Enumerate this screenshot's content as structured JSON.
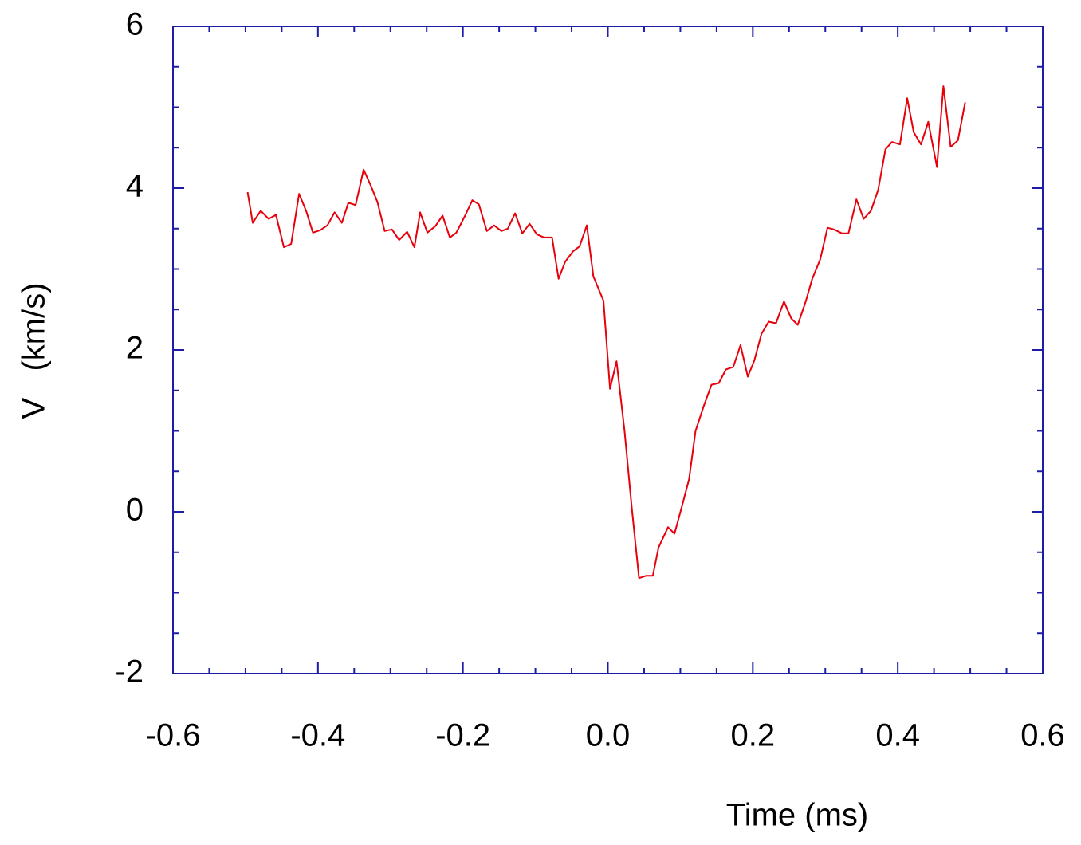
{
  "chart_data": {
    "type": "line",
    "xlabel": "Time (ms)",
    "ylabel": "V   (km/s)",
    "xlim": [
      -0.6,
      0.6
    ],
    "xticks": [
      -0.6,
      -0.4,
      -0.2,
      {
        "value": 0,
        "label": "0.0"
      },
      0.2,
      0.4,
      0.6
    ],
    "ylim": [
      -2,
      6
    ],
    "yticks": [
      -2,
      0,
      2,
      4,
      6
    ],
    "axis_color": "#1c1ca8",
    "series": [
      {
        "color": "#e8000b",
        "x": [
          -0.497,
          -0.49,
          -0.479,
          -0.468,
          -0.458,
          -0.447,
          -0.437,
          -0.426,
          -0.416,
          -0.407,
          -0.397,
          -0.387,
          -0.377,
          -0.367,
          -0.358,
          -0.348,
          -0.337,
          -0.327,
          -0.318,
          -0.308,
          -0.298,
          -0.288,
          -0.277,
          -0.267,
          -0.259,
          -0.249,
          -0.238,
          -0.228,
          -0.218,
          -0.209,
          -0.197,
          -0.187,
          -0.178,
          -0.167,
          -0.157,
          -0.147,
          -0.138,
          -0.128,
          -0.118,
          -0.108,
          -0.098,
          -0.088,
          -0.077,
          -0.068,
          -0.059,
          -0.048,
          -0.039,
          -0.029,
          -0.02,
          -0.006,
          0.003,
          0.012,
          0.023,
          0.033,
          0.043,
          0.053,
          0.062,
          0.07,
          0.083,
          0.092,
          0.102,
          0.112,
          0.121,
          0.132,
          0.143,
          0.153,
          0.163,
          0.173,
          0.183,
          0.193,
          0.202,
          0.212,
          0.222,
          0.232,
          0.243,
          0.253,
          0.262,
          0.273,
          0.282,
          0.293,
          0.303,
          0.312,
          0.323,
          0.332,
          0.343,
          0.353,
          0.363,
          0.373,
          0.383,
          0.392,
          0.403,
          0.413,
          0.422,
          0.432,
          0.442,
          0.454,
          0.463,
          0.473,
          0.483,
          0.493
        ],
        "values": [
          3.95,
          3.57,
          3.72,
          3.62,
          3.67,
          3.27,
          3.31,
          3.93,
          3.71,
          3.45,
          3.48,
          3.54,
          3.7,
          3.57,
          3.82,
          3.79,
          4.23,
          4.03,
          3.83,
          3.47,
          3.49,
          3.36,
          3.46,
          3.27,
          3.7,
          3.45,
          3.53,
          3.66,
          3.39,
          3.45,
          3.66,
          3.85,
          3.8,
          3.47,
          3.54,
          3.47,
          3.5,
          3.69,
          3.44,
          3.56,
          3.43,
          3.39,
          3.39,
          2.88,
          3.09,
          3.22,
          3.28,
          3.54,
          2.91,
          2.61,
          1.52,
          1.86,
          1.0,
          0.05,
          -0.82,
          -0.79,
          -0.79,
          -0.44,
          -0.19,
          -0.27,
          0.06,
          0.4,
          1.0,
          1.3,
          1.57,
          1.59,
          1.76,
          1.79,
          2.06,
          1.67,
          1.87,
          2.2,
          2.35,
          2.33,
          2.6,
          2.39,
          2.31,
          2.6,
          2.88,
          3.12,
          3.51,
          3.49,
          3.44,
          3.44,
          3.86,
          3.62,
          3.72,
          3.98,
          4.48,
          4.57,
          4.54,
          5.11,
          4.69,
          4.54,
          4.82,
          4.26,
          5.26,
          4.51,
          4.59,
          5.06
        ]
      }
    ]
  }
}
